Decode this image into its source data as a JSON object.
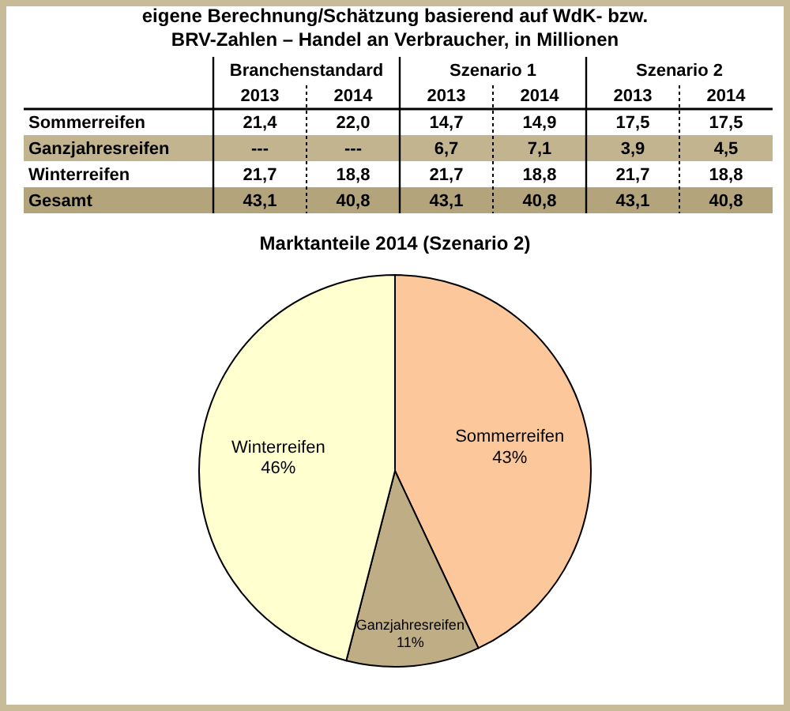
{
  "chart_data": [
    {
      "type": "heatmap",
      "title": "eigene Berechnung/Schätzung basierend auf WdK- bzw.",
      "subtitle": "BRV-Zahlen – Handel an Verbraucher, in Millionen",
      "annotations": [
        "Branchenstandard",
        "Szenario 1",
        "Szenario 2"
      ],
      "categories": [
        "2013",
        "2014",
        "2013",
        "2014",
        "2013",
        "2014"
      ],
      "y_categories": [
        "Sommerreifen",
        "Ganzjahresreifen",
        "Winterreifen",
        "Gesamt"
      ],
      "cells": [
        [
          21.4,
          22.0,
          14.7,
          14.9,
          17.5,
          17.5
        ],
        [
          null,
          null,
          6.7,
          7.1,
          3.9,
          4.5
        ],
        [
          21.7,
          18.8,
          21.7,
          18.8,
          21.7,
          18.8
        ],
        [
          43.1,
          40.8,
          43.1,
          40.8,
          43.1,
          40.8
        ]
      ],
      "cell_labels": [
        [
          "21,4",
          "22,0",
          "14,7",
          "14,9",
          "17,5",
          "17,5"
        ],
        [
          "---",
          "---",
          "6,7",
          "7,1",
          "3,9",
          "4,5"
        ],
        [
          "21,7",
          "18,8",
          "21,7",
          "18,8",
          "21,7",
          "18,8"
        ],
        [
          "43,1",
          "40,8",
          "43,1",
          "40,8",
          "43,1",
          "40,8"
        ]
      ]
    },
    {
      "type": "pie",
      "title": "Marktanteile 2014 (Szenario 2)",
      "categories": [
        "Sommerreifen",
        "Ganzjahresreifen",
        "Winterreifen"
      ],
      "values": [
        43,
        11,
        46
      ],
      "colors": [
        "#fcc89b",
        "#bfae85",
        "#ffffd0"
      ],
      "value_labels": [
        "43%",
        "11%",
        "46%"
      ]
    }
  ]
}
